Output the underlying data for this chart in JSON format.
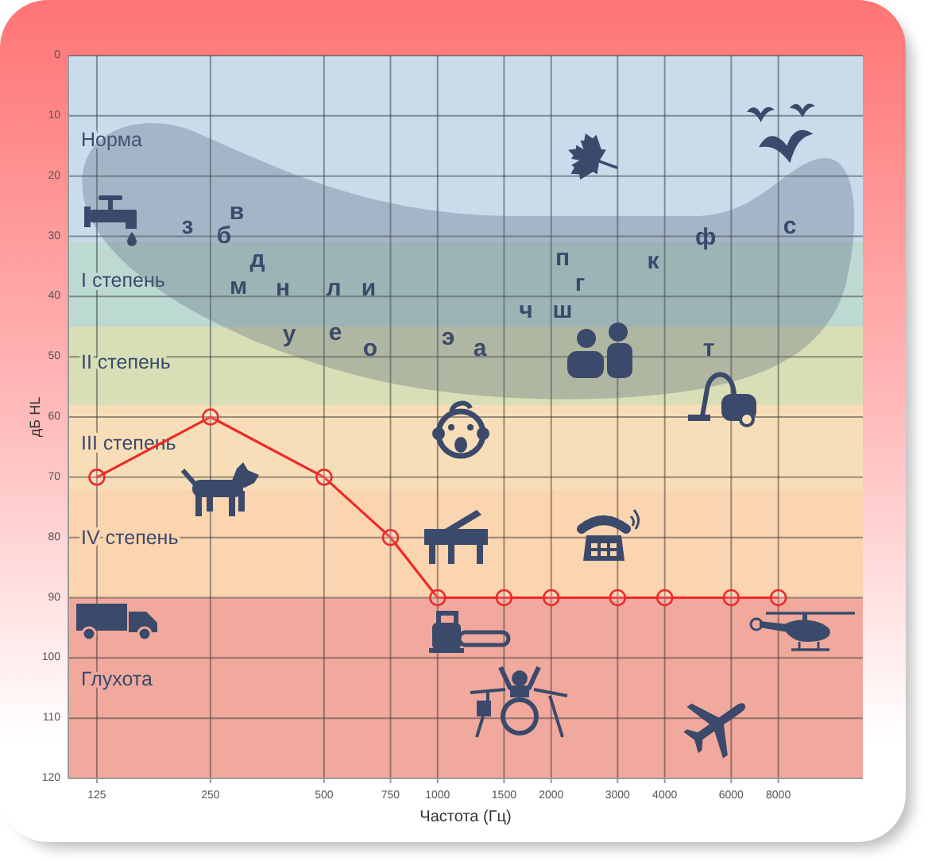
{
  "chart_data": {
    "type": "line",
    "xlabel": "Частота (Гц)",
    "ylabel": "дБ HL",
    "x": [
      125,
      250,
      500,
      750,
      1000,
      1500,
      2000,
      3000,
      4000,
      6000,
      8000
    ],
    "series": [
      {
        "color": "#f02828",
        "values": [
          70,
          60,
          70,
          80,
          90,
          90,
          90,
          90,
          90,
          90,
          90
        ]
      }
    ],
    "xlim": [
      105,
      13400
    ],
    "ylim": [
      120,
      0
    ],
    "xticks": [
      125,
      250,
      500,
      750,
      1000,
      1500,
      2000,
      3000,
      4000,
      6000,
      8000
    ],
    "yticks": [
      0,
      10,
      20,
      30,
      40,
      50,
      60,
      70,
      80,
      90,
      100,
      110,
      120
    ],
    "log": "x",
    "grid": true,
    "marker": "circle",
    "line_style": "solid",
    "bands": [
      {
        "axis": "y",
        "from": 0,
        "to": 31,
        "label": "Норма",
        "color": "#c8dcec"
      },
      {
        "axis": "y",
        "from": 31,
        "to": 45,
        "label": "I степень",
        "color": "#bcdad2"
      },
      {
        "axis": "y",
        "from": 45,
        "to": 58,
        "label": "II степень",
        "color": "#d8dfb6"
      },
      {
        "axis": "y",
        "from": 58,
        "to": 72,
        "label": "III степень",
        "color": "#f8deb8"
      },
      {
        "axis": "y",
        "from": 72,
        "to": 90,
        "label": "IV степень",
        "color": "#fbd4b0"
      },
      {
        "axis": "y",
        "from": 90,
        "to": 120,
        "label": "Глухота",
        "color": "#f0a99c"
      }
    ],
    "annotations": [
      "з",
      "б",
      "в",
      "д",
      "м",
      "н",
      "л",
      "и",
      "у",
      "е",
      "о",
      "э",
      "а",
      "ч",
      "ш",
      "п",
      "г",
      "к",
      "ф",
      "с",
      "т"
    ]
  }
}
